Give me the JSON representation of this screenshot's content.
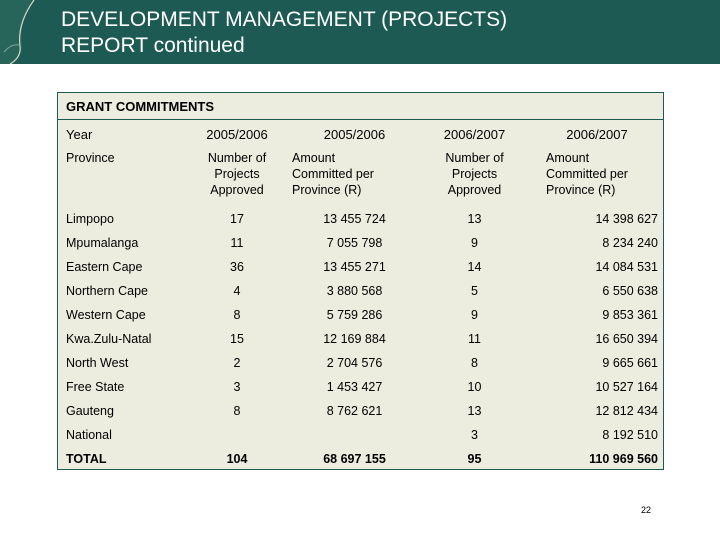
{
  "header": {
    "title_line1": "DEVELOPMENT MANAGEMENT (PROJECTS)",
    "title_line2": "REPORT continued"
  },
  "section": {
    "title": "GRANT COMMITMENTS"
  },
  "table": {
    "year_label": "Year",
    "years": [
      "2005/2006",
      "2005/2006",
      "2006/2007",
      "2006/2007"
    ],
    "province_label": "Province",
    "sub_headers": [
      [
        "Number of",
        "Projects",
        "Approved"
      ],
      [
        "Amount",
        "Committed per",
        "Province (R)"
      ],
      [
        "Number of",
        "Projects",
        "Approved"
      ],
      [
        "Amount",
        "Committed per",
        "Province (R)"
      ]
    ],
    "rows": [
      {
        "province": "Limpopo",
        "n1": "17",
        "a1": "13 455 724",
        "n2": "13",
        "a2": "14 398 627"
      },
      {
        "province": "Mpumalanga",
        "n1": "11",
        "a1": "7 055 798",
        "n2": "9",
        "a2": "8 234 240"
      },
      {
        "province": "Eastern Cape",
        "n1": "36",
        "a1": "13 455 271",
        "n2": "14",
        "a2": "14 084 531"
      },
      {
        "province": "Northern Cape",
        "n1": "4",
        "a1": "3 880 568",
        "n2": "5",
        "a2": "6 550 638"
      },
      {
        "province": "Western Cape",
        "n1": "8",
        "a1": "5 759 286",
        "n2": "9",
        "a2": "9 853 361"
      },
      {
        "province": "Kwa.Zulu-Natal",
        "n1": "15",
        "a1": "12 169 884",
        "n2": "11",
        "a2": "16 650 394"
      },
      {
        "province": "North West",
        "n1": "2",
        "a1": "2 704 576",
        "n2": "8",
        "a2": "9 665 661"
      },
      {
        "province": "Free State",
        "n1": "3",
        "a1": "1 453 427",
        "n2": "10",
        "a2": "10 527 164"
      },
      {
        "province": "Gauteng",
        "n1": "8",
        "a1": "8 762 621",
        "n2": "13",
        "a2": "12 812 434"
      }
    ],
    "national": {
      "province": "National",
      "n2": "3",
      "a2": "8 192 510"
    },
    "total": {
      "province": "TOTAL",
      "n1": "104",
      "a1": "68 697 155",
      "n2": "95",
      "a2": "110 969 560"
    }
  },
  "page_number": "22",
  "colors": {
    "header_bg": "#1d5a53",
    "panel_bg": "#eceddf"
  }
}
